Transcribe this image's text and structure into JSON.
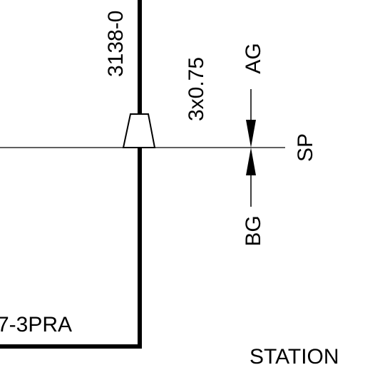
{
  "diagram": {
    "cable_id_label": "3138-0",
    "cable_spec_label": "3x0.75",
    "upper_arrow_label": "AG",
    "lower_arrow_label": "BG",
    "right_end_label": "SP",
    "bottom_left_label": "7-3PRA",
    "bottom_right_label": "STATION",
    "colors": {
      "line": "#000000",
      "background": "#ffffff"
    }
  }
}
